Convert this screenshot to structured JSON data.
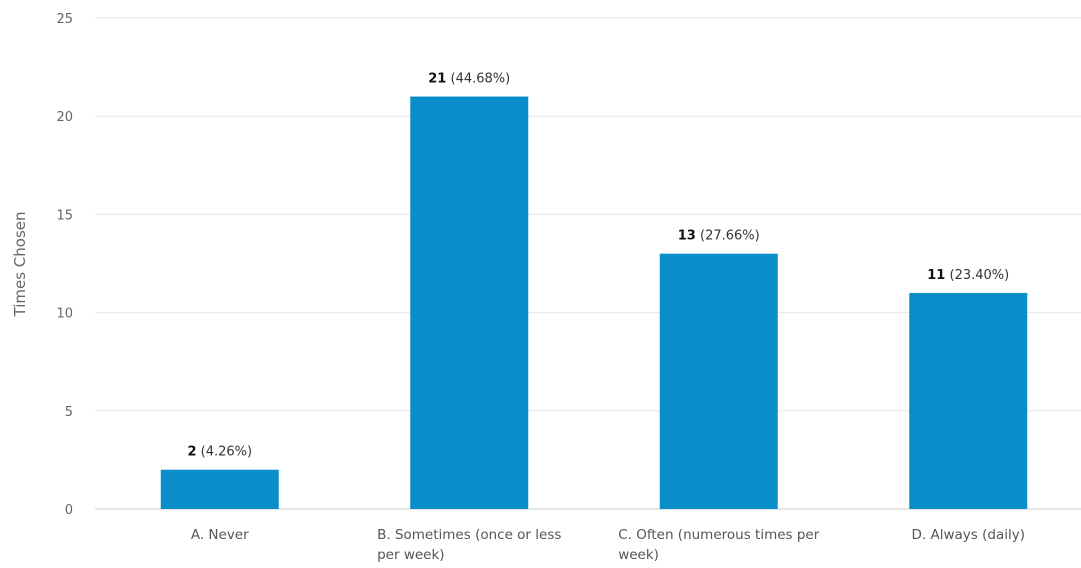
{
  "chart_data": {
    "type": "bar",
    "title": "",
    "xlabel": "",
    "ylabel": "Times Chosen",
    "ylim": [
      0,
      25
    ],
    "yticks": [
      "0",
      "5",
      "10",
      "15",
      "20",
      "25"
    ],
    "grid": true,
    "legend": "none",
    "categories": [
      [
        "A. Never"
      ],
      [
        "B. Sometimes (once or less",
        "per week)"
      ],
      [
        "C. Often (numerous times per",
        "week)"
      ],
      [
        "D. Always (daily)"
      ]
    ],
    "values": [
      2,
      21,
      13,
      11
    ],
    "percent_labels": [
      "(4.26%)",
      "(44.68%)",
      "(27.66%)",
      "(23.40%)"
    ],
    "bar_color": "#0a8ec9",
    "grid_color": "#e6e6e6",
    "baseline_color": "#cccccc"
  }
}
